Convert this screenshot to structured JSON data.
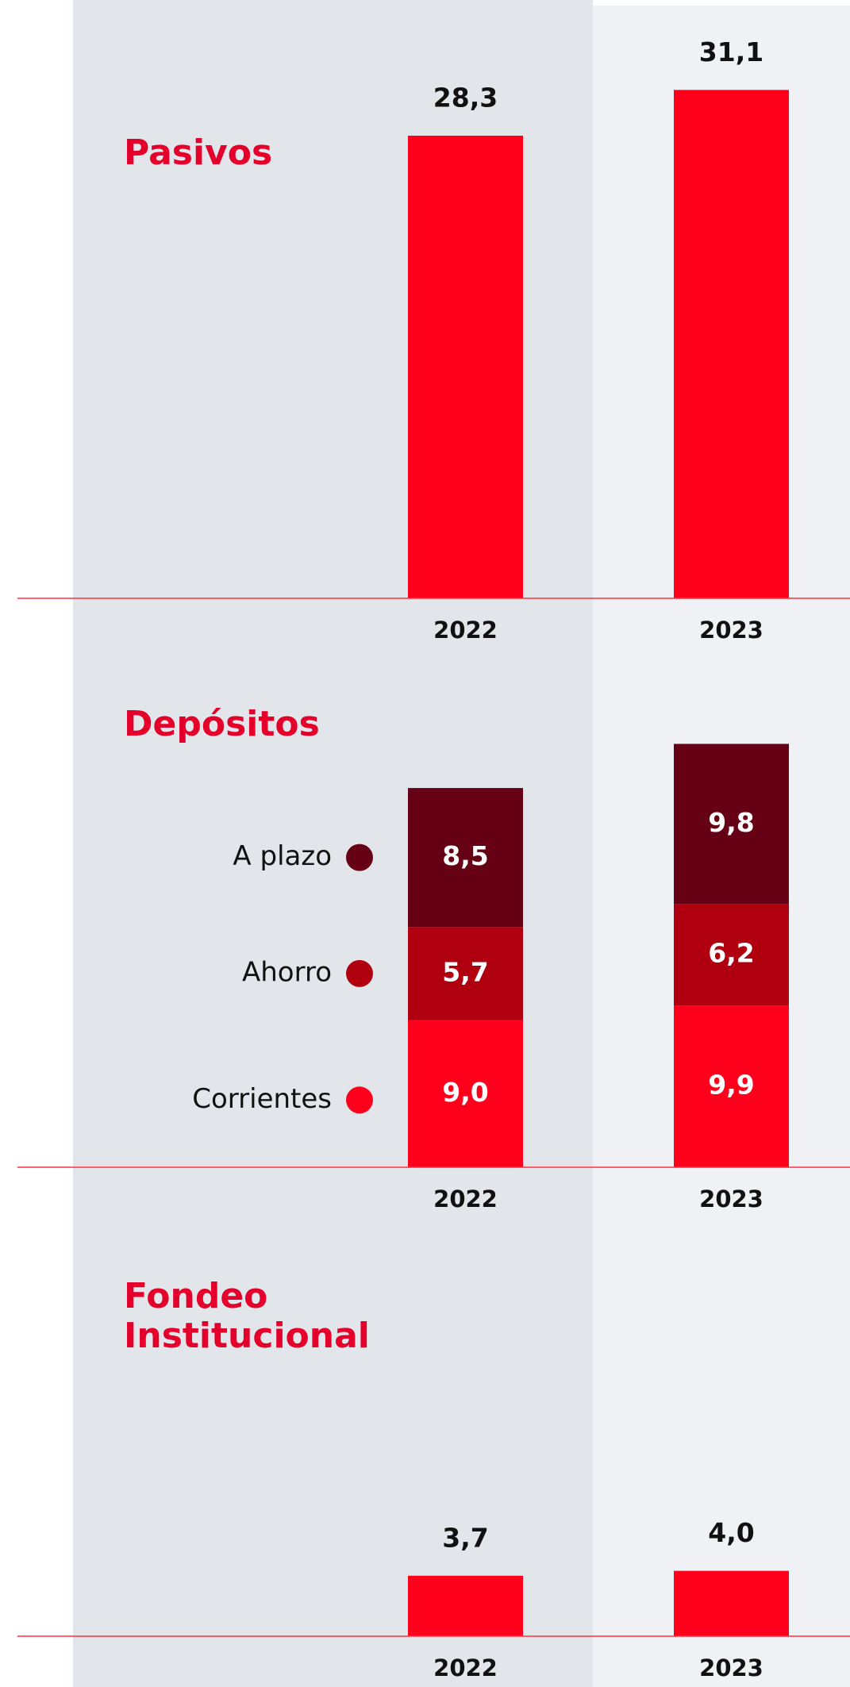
{
  "chart_data": [
    {
      "type": "bar",
      "title": "Pasivos",
      "categories": [
        "2022",
        "2023"
      ],
      "values": [
        28.3,
        31.1
      ],
      "value_labels": [
        "28,3",
        "31,1"
      ],
      "color": "#ff001c"
    },
    {
      "type": "stacked_bar",
      "title": "Depósitos",
      "categories": [
        "2022",
        "2023"
      ],
      "series": [
        {
          "name": "Corrientes",
          "color": "#ff001c",
          "values": [
            9.0,
            9.9
          ],
          "value_labels": [
            "9,0",
            "9,9"
          ]
        },
        {
          "name": "Ahorro",
          "color": "#b0000f",
          "values": [
            5.7,
            6.2
          ],
          "value_labels": [
            "5,7",
            "6,2"
          ]
        },
        {
          "name": "A plazo",
          "color": "#650015",
          "values": [
            8.5,
            9.8
          ],
          "value_labels": [
            "8,5",
            "9,8"
          ]
        }
      ]
    },
    {
      "type": "bar",
      "title": "Fondeo Institucional",
      "categories": [
        "2022",
        "2023"
      ],
      "values": [
        3.7,
        4.0
      ],
      "value_labels": [
        "3,7",
        "4,0"
      ],
      "color": "#ff001c"
    }
  ]
}
